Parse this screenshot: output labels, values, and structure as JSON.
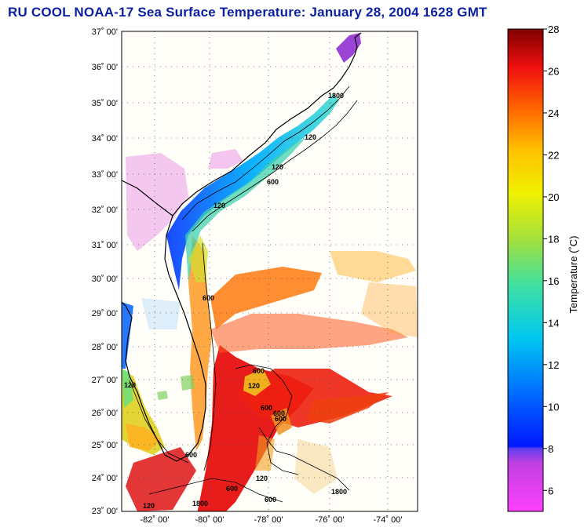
{
  "title": "RU COOL  NOAA-17  Sea Surface Temperature:  January 28, 2004 1628 GMT",
  "latitude_ticks": [
    "37˚ 00'",
    "36˚ 00'",
    "35˚ 00'",
    "34˚ 00'",
    "33˚ 00'",
    "32˚ 00'",
    "31˚ 00'",
    "30˚ 00'",
    "29˚ 00'",
    "28˚ 00'",
    "27˚ 00'",
    "26˚ 00'",
    "25˚ 00'",
    "24˚ 00'",
    "23˚ 00'"
  ],
  "longitude_ticks": [
    "-82˚ 00'",
    "-80˚ 00'",
    "-78˚ 00'",
    "-76˚ 00'",
    "-74˚ 00'"
  ],
  "colorbar": {
    "label": "Temperature (˚C)",
    "ticks": [
      "28",
      "26",
      "24",
      "22",
      "20",
      "18",
      "16",
      "14",
      "12",
      "10",
      "8",
      "6"
    ],
    "min": 5,
    "max": 28
  },
  "contour_labels": [
    "120",
    "600",
    "120",
    "600",
    "120",
    "1800",
    "600",
    "600",
    "120",
    "600",
    "600",
    "1800",
    "120",
    "600",
    "1800",
    "120",
    "600",
    "120",
    "600"
  ],
  "colors": {
    "title": "#0b1fa3",
    "land": "#fffef8",
    "grid": "#555555"
  }
}
